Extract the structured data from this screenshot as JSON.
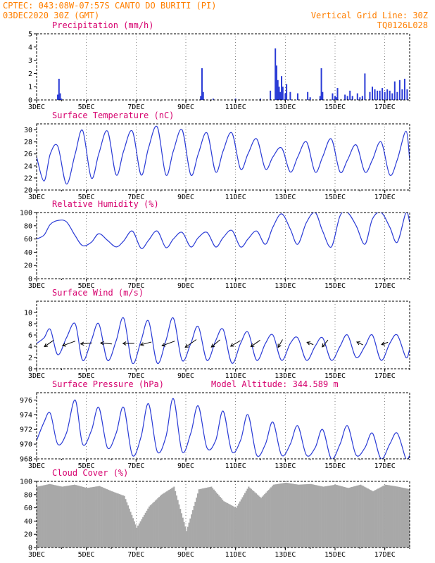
{
  "header": {
    "line1": "CPTEC:   043:08W-07:57S  CANTO DO BURITI (PI)",
    "line2": "03DEC2020 30Z (GMT)",
    "grid_note": "Vertical Grid Line: 30Z",
    "run_id": "TQ0126L028"
  },
  "colors": {
    "header": "#ff7f00",
    "panel_title": "#d6006e",
    "series": "#2a3bd6",
    "precip_bar": "#2a3bd6",
    "cloud_bar": "#a8a8a8",
    "arrow": "#000000"
  },
  "x_axis": {
    "tick_labels": [
      "3DEC",
      "5DEC",
      "7DEC",
      "9DEC",
      "11DEC",
      "13DEC",
      "15DEC",
      "17DEC"
    ],
    "start_day": 3,
    "end_day": 18
  },
  "chart_data": [
    {
      "type": "bar",
      "title": "Precipitation (mm/h)",
      "ylim": [
        0,
        5
      ],
      "yticks": [
        0,
        1,
        2,
        3,
        4,
        5
      ],
      "x_days": [
        3.85,
        3.9,
        3.95,
        4.0,
        9.6,
        9.65,
        9.7,
        10.1,
        11.0,
        12.0,
        12.4,
        12.6,
        12.65,
        12.7,
        12.75,
        12.8,
        12.85,
        12.9,
        13.0,
        13.05,
        13.2,
        13.5,
        13.9,
        14.0,
        14.4,
        14.45,
        14.5,
        14.9,
        15.0,
        15.05,
        15.1,
        15.4,
        15.5,
        15.6,
        15.7,
        15.9,
        16.0,
        16.1,
        16.2,
        16.4,
        16.5,
        16.6,
        16.7,
        16.8,
        16.9,
        17.0,
        17.1,
        17.2,
        17.3,
        17.4,
        17.5,
        17.6,
        17.7,
        17.8,
        17.9
      ],
      "values": [
        0.4,
        1.6,
        0.5,
        0.1,
        0.3,
        2.4,
        0.6,
        0.1,
        0.1,
        0.1,
        0.7,
        3.9,
        2.6,
        1.5,
        1.0,
        0.6,
        1.8,
        1.0,
        0.5,
        1.2,
        0.6,
        0.5,
        0.6,
        0.2,
        0.3,
        2.4,
        0.6,
        0.5,
        0.3,
        0.2,
        0.9,
        0.4,
        0.3,
        0.7,
        0.3,
        0.5,
        0.2,
        0.3,
        2.0,
        0.6,
        1.0,
        0.8,
        0.7,
        0.7,
        0.9,
        0.6,
        0.8,
        0.7,
        0.5,
        1.4,
        0.6,
        1.5,
        0.8,
        1.6,
        0.8
      ]
    },
    {
      "type": "line",
      "title": "Surface Temperature (nC)",
      "ylim": [
        20,
        31
      ],
      "yticks": [
        20,
        22,
        24,
        26,
        28,
        30
      ],
      "x": [
        3.0,
        3.3,
        3.55,
        3.85,
        4.2,
        4.55,
        4.85,
        5.2,
        5.5,
        5.85,
        6.2,
        6.5,
        6.85,
        7.2,
        7.5,
        7.85,
        8.2,
        8.5,
        8.85,
        9.2,
        9.5,
        9.85,
        10.2,
        10.5,
        10.85,
        11.2,
        11.5,
        11.85,
        12.2,
        12.5,
        12.85,
        13.2,
        13.5,
        13.85,
        14.2,
        14.5,
        14.85,
        15.2,
        15.5,
        15.85,
        16.2,
        16.5,
        16.85,
        17.2,
        17.5,
        17.85,
        18.0
      ],
      "values": [
        25.5,
        21.5,
        26.0,
        27.3,
        21.0,
        26.0,
        29.9,
        22.0,
        26.0,
        29.8,
        22.5,
        26.5,
        29.8,
        22.5,
        27.0,
        30.5,
        22.5,
        26.5,
        30.0,
        22.5,
        26.0,
        29.5,
        23.0,
        26.5,
        29.5,
        23.5,
        26.0,
        28.5,
        23.5,
        25.5,
        27.0,
        23.0,
        25.5,
        28.0,
        23.0,
        25.5,
        28.5,
        23.0,
        25.0,
        27.5,
        23.0,
        25.0,
        28.0,
        22.5,
        25.0,
        29.8,
        25.0
      ]
    },
    {
      "type": "line",
      "title": "Relative Humidity (%)",
      "ylim": [
        0,
        100
      ],
      "yticks": [
        0,
        20,
        40,
        60,
        80,
        100
      ],
      "x": [
        3.0,
        3.3,
        3.55,
        3.85,
        4.2,
        4.55,
        4.85,
        5.2,
        5.5,
        5.85,
        6.2,
        6.5,
        6.85,
        7.2,
        7.5,
        7.85,
        8.2,
        8.5,
        8.85,
        9.2,
        9.5,
        9.85,
        10.2,
        10.5,
        10.85,
        11.2,
        11.5,
        11.85,
        12.2,
        12.5,
        12.85,
        13.2,
        13.5,
        13.85,
        14.2,
        14.5,
        14.85,
        15.2,
        15.5,
        15.85,
        16.2,
        16.5,
        16.85,
        17.2,
        17.5,
        17.85,
        18.0
      ],
      "values": [
        60,
        66,
        82,
        88,
        86,
        65,
        50,
        55,
        68,
        58,
        48,
        57,
        72,
        46,
        58,
        72,
        47,
        60,
        70,
        48,
        62,
        70,
        48,
        62,
        73,
        48,
        60,
        72,
        52,
        78,
        98,
        75,
        52,
        85,
        100,
        72,
        48,
        95,
        100,
        80,
        52,
        90,
        100,
        78,
        55,
        100,
        85
      ]
    },
    {
      "type": "line",
      "title": "Surface Wind (m/s)",
      "ylim": [
        0,
        12
      ],
      "yticks": [
        0,
        2,
        4,
        6,
        8,
        10
      ],
      "x": [
        3.0,
        3.3,
        3.55,
        3.85,
        4.2,
        4.55,
        4.85,
        5.2,
        5.5,
        5.85,
        6.2,
        6.5,
        6.85,
        7.2,
        7.5,
        7.85,
        8.2,
        8.5,
        8.85,
        9.2,
        9.5,
        9.85,
        10.2,
        10.5,
        10.85,
        11.2,
        11.5,
        11.85,
        12.2,
        12.5,
        12.85,
        13.2,
        13.5,
        13.85,
        14.2,
        14.5,
        14.85,
        15.2,
        15.5,
        15.85,
        16.2,
        16.5,
        16.85,
        17.2,
        17.5,
        17.85,
        18.0
      ],
      "values": [
        4.5,
        5.5,
        7.0,
        2.5,
        5.5,
        8.0,
        1.5,
        5.0,
        8.0,
        1.5,
        5.0,
        9.0,
        1.0,
        5.0,
        8.5,
        1.0,
        5.0,
        9.0,
        1.5,
        4.5,
        7.5,
        1.5,
        5.0,
        7.0,
        1.0,
        4.5,
        6.5,
        1.5,
        4.5,
        6.0,
        1.5,
        4.5,
        5.5,
        1.5,
        4.0,
        5.5,
        1.5,
        4.0,
        6.0,
        2.0,
        4.0,
        6.0,
        1.5,
        4.5,
        6.0,
        2.0,
        3.5
      ],
      "vectors": [
        {
          "day": 3.5,
          "dir_deg": 215,
          "speed": 5
        },
        {
          "day": 4.3,
          "dir_deg": 200,
          "speed": 6
        },
        {
          "day": 5.0,
          "dir_deg": 185,
          "speed": 5
        },
        {
          "day": 5.8,
          "dir_deg": 175,
          "speed": 5
        },
        {
          "day": 6.7,
          "dir_deg": 180,
          "speed": 5
        },
        {
          "day": 7.4,
          "dir_deg": 195,
          "speed": 5
        },
        {
          "day": 8.3,
          "dir_deg": 200,
          "speed": 6
        },
        {
          "day": 9.2,
          "dir_deg": 215,
          "speed": 6
        },
        {
          "day": 10.2,
          "dir_deg": 220,
          "speed": 5
        },
        {
          "day": 11.0,
          "dir_deg": 210,
          "speed": 5
        },
        {
          "day": 11.8,
          "dir_deg": 215,
          "speed": 5
        },
        {
          "day": 12.8,
          "dir_deg": 240,
          "speed": 4
        },
        {
          "day": 14.0,
          "dir_deg": 160,
          "speed": 3
        },
        {
          "day": 14.6,
          "dir_deg": 230,
          "speed": 4
        },
        {
          "day": 16.0,
          "dir_deg": 155,
          "speed": 3
        },
        {
          "day": 17.0,
          "dir_deg": 200,
          "speed": 3
        }
      ]
    },
    {
      "type": "line",
      "title": "Surface Pressure (hPa)",
      "subtitle": "Model Altitude: 344.589 m",
      "ylim": [
        968,
        977
      ],
      "yticks": [
        968,
        970,
        972,
        974,
        976
      ],
      "x": [
        3.0,
        3.3,
        3.55,
        3.85,
        4.2,
        4.55,
        4.85,
        5.2,
        5.5,
        5.85,
        6.2,
        6.5,
        6.85,
        7.2,
        7.5,
        7.85,
        8.2,
        8.5,
        8.85,
        9.2,
        9.5,
        9.85,
        10.2,
        10.5,
        10.85,
        11.2,
        11.5,
        11.85,
        12.2,
        12.5,
        12.85,
        13.2,
        13.5,
        13.85,
        14.2,
        14.5,
        14.85,
        15.2,
        15.5,
        15.85,
        16.2,
        16.5,
        16.85,
        17.2,
        17.5,
        17.85,
        18.0
      ],
      "values": [
        970.5,
        973.0,
        974.2,
        970.0,
        971.5,
        976.0,
        970.0,
        971.8,
        975.0,
        969.5,
        971.5,
        975.0,
        968.5,
        971.0,
        975.5,
        969.0,
        971.0,
        976.2,
        969.0,
        971.5,
        975.2,
        969.5,
        970.5,
        974.5,
        969.0,
        970.5,
        974.0,
        968.5,
        970.0,
        973.0,
        968.5,
        970.0,
        972.5,
        968.5,
        969.5,
        972.0,
        968.0,
        970.0,
        972.5,
        968.5,
        969.5,
        971.5,
        968.0,
        970.0,
        971.5,
        968.0,
        968.5
      ]
    },
    {
      "type": "bar",
      "title": "Cloud Cover (%)",
      "ylim": [
        0,
        100
      ],
      "yticks": [
        0,
        20,
        40,
        60,
        80,
        100
      ],
      "x": [
        3.0,
        3.5,
        4.0,
        4.5,
        5.0,
        5.5,
        6.0,
        6.5,
        7.0,
        7.5,
        8.0,
        8.5,
        9.0,
        9.5,
        10.0,
        10.5,
        11.0,
        11.5,
        12.0,
        12.5,
        13.0,
        13.5,
        14.0,
        14.5,
        15.0,
        15.5,
        16.0,
        16.5,
        17.0,
        17.5,
        18.0
      ],
      "values": [
        92,
        96,
        92,
        95,
        90,
        93,
        85,
        78,
        30,
        62,
        80,
        92,
        25,
        88,
        92,
        70,
        60,
        92,
        75,
        95,
        98,
        95,
        96,
        92,
        95,
        90,
        95,
        85,
        95,
        92,
        88
      ]
    }
  ]
}
